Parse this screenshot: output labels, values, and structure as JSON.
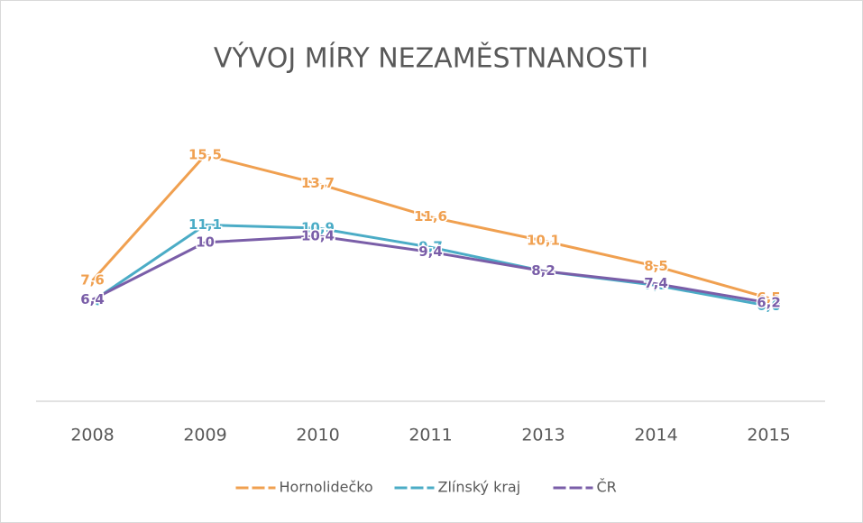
{
  "chart_data": {
    "type": "line",
    "title": "VÝVOJ MÍRY NEZAMĚSTNANOSTI",
    "categories": [
      "2008",
      "2009",
      "2010",
      "2011",
      "2013",
      "2014",
      "2015"
    ],
    "ylim": [
      0,
      18
    ],
    "legend": "bottom",
    "series": [
      {
        "name": "Hornolidečko",
        "color": "#f0a050",
        "values": [
          7.6,
          15.5,
          13.7,
          11.6,
          10.1,
          8.5,
          6.5
        ],
        "value_labels": [
          "7,6",
          "15,5",
          "13,7",
          "11,6",
          "10,1",
          "8,5",
          "6,5"
        ]
      },
      {
        "name": "Zlínský kraj",
        "color": "#4bacc6",
        "values": [
          6.3,
          11.1,
          10.9,
          9.7,
          8.2,
          7.3,
          6.0
        ],
        "value_labels": [
          "6,3",
          "11,1",
          "10,9",
          "9,7",
          "8,2",
          "7,3",
          "6,0"
        ]
      },
      {
        "name": "ČR",
        "color": "#7a5ea8",
        "values": [
          6.4,
          10,
          10.4,
          9.4,
          8.2,
          7.4,
          6.2
        ],
        "value_labels": [
          "6,4",
          "10",
          "10,4",
          "9,4",
          "8,2",
          "7,4",
          "6,2"
        ]
      }
    ]
  }
}
